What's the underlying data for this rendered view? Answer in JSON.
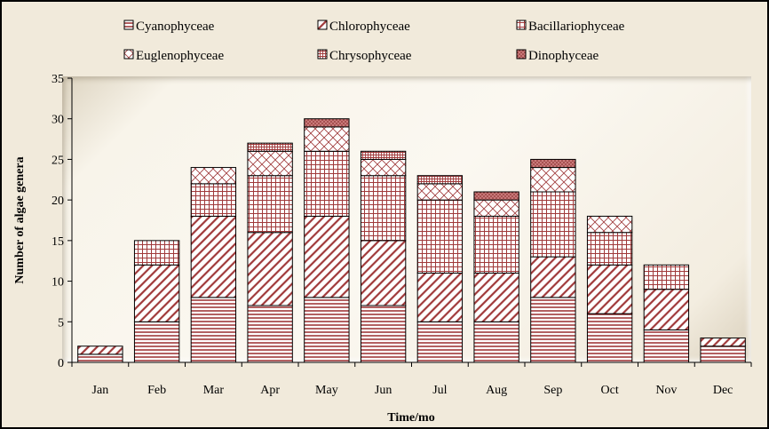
{
  "chart_data": {
    "type": "bar",
    "stacked": true,
    "title": "",
    "xlabel": "Time/mo",
    "ylabel": "Number of algae genera",
    "ylim": [
      0,
      35
    ],
    "yticks": [
      0,
      5,
      10,
      15,
      20,
      25,
      30,
      35
    ],
    "grid": false,
    "legend_position": "top",
    "categories": [
      "Jan",
      "Feb",
      "Mar",
      "Apr",
      "May",
      "Jun",
      "Jul",
      "Aug",
      "Sep",
      "Oct",
      "Nov",
      "Dec"
    ],
    "series": [
      {
        "name": "Cyanophyceae",
        "pattern": "horizontal-lines",
        "color": "#a0393a",
        "values": [
          1,
          5,
          8,
          7,
          8,
          7,
          5,
          5,
          8,
          6,
          4,
          2
        ]
      },
      {
        "name": "Chlorophyceae",
        "pattern": "diagonal-lines",
        "color": "#a0393a",
        "values": [
          1,
          7,
          10,
          9,
          10,
          8,
          6,
          6,
          5,
          6,
          5,
          1
        ]
      },
      {
        "name": "Bacillariophyceae",
        "pattern": "grid",
        "color": "#a0393a",
        "values": [
          0,
          3,
          4,
          7,
          8,
          8,
          9,
          7,
          8,
          4,
          3,
          0
        ]
      },
      {
        "name": "Euglenophyceae",
        "pattern": "crosshatch",
        "color": "#a0393a",
        "values": [
          0,
          0,
          2,
          3,
          3,
          2,
          2,
          2,
          3,
          2,
          0,
          0
        ]
      },
      {
        "name": "Chrysophyceae",
        "pattern": "dense-grid",
        "color": "#a0393a",
        "values": [
          0,
          0,
          0,
          1,
          0,
          1,
          1,
          0,
          0,
          0,
          0,
          0
        ]
      },
      {
        "name": "Dinophyceae",
        "pattern": "dots",
        "color": "#a0393a",
        "values": [
          0,
          0,
          0,
          0,
          1,
          0,
          0,
          1,
          1,
          0,
          0,
          0
        ]
      }
    ]
  }
}
